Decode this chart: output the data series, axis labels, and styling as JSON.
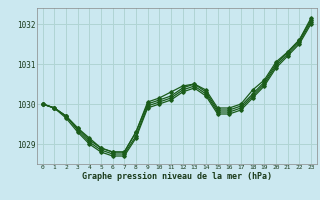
{
  "xlabel": "Graphe pression niveau de la mer (hPa)",
  "background_color": "#cbe8f0",
  "grid_color": "#b0d4d4",
  "line_color": "#1a5c1a",
  "ylim": [
    1028.5,
    1032.4
  ],
  "xlim": [
    -0.5,
    23.5
  ],
  "yticks": [
    1029,
    1030,
    1031,
    1032
  ],
  "xticks": [
    0,
    1,
    2,
    3,
    4,
    5,
    6,
    7,
    8,
    9,
    10,
    11,
    12,
    13,
    14,
    15,
    16,
    17,
    18,
    19,
    20,
    21,
    22,
    23
  ],
  "series": [
    [
      1030.0,
      1029.9,
      1029.7,
      1029.4,
      1029.15,
      1028.9,
      1028.8,
      1028.8,
      1029.3,
      1030.05,
      1030.15,
      1030.3,
      1030.45,
      1030.5,
      1030.35,
      1029.9,
      1029.9,
      1030.0,
      1030.35,
      1030.6,
      1031.05,
      1031.3,
      1031.6,
      1032.15
    ],
    [
      1030.0,
      1029.9,
      1029.7,
      1029.4,
      1029.1,
      1028.9,
      1028.8,
      1028.8,
      1029.3,
      1030.0,
      1030.1,
      1030.2,
      1030.4,
      1030.5,
      1030.3,
      1029.85,
      1029.85,
      1029.95,
      1030.25,
      1030.55,
      1031.0,
      1031.3,
      1031.6,
      1032.1
    ],
    [
      1030.0,
      1029.9,
      1029.7,
      1029.35,
      1029.05,
      1028.85,
      1028.75,
      1028.75,
      1029.2,
      1029.95,
      1030.05,
      1030.15,
      1030.35,
      1030.45,
      1030.25,
      1029.8,
      1029.8,
      1029.9,
      1030.2,
      1030.5,
      1030.95,
      1031.25,
      1031.55,
      1032.05
    ],
    [
      1030.0,
      1029.9,
      1029.65,
      1029.3,
      1029.0,
      1028.8,
      1028.7,
      1028.7,
      1029.15,
      1029.9,
      1030.0,
      1030.1,
      1030.3,
      1030.4,
      1030.2,
      1029.75,
      1029.75,
      1029.85,
      1030.15,
      1030.45,
      1030.9,
      1031.2,
      1031.5,
      1032.0
    ]
  ]
}
